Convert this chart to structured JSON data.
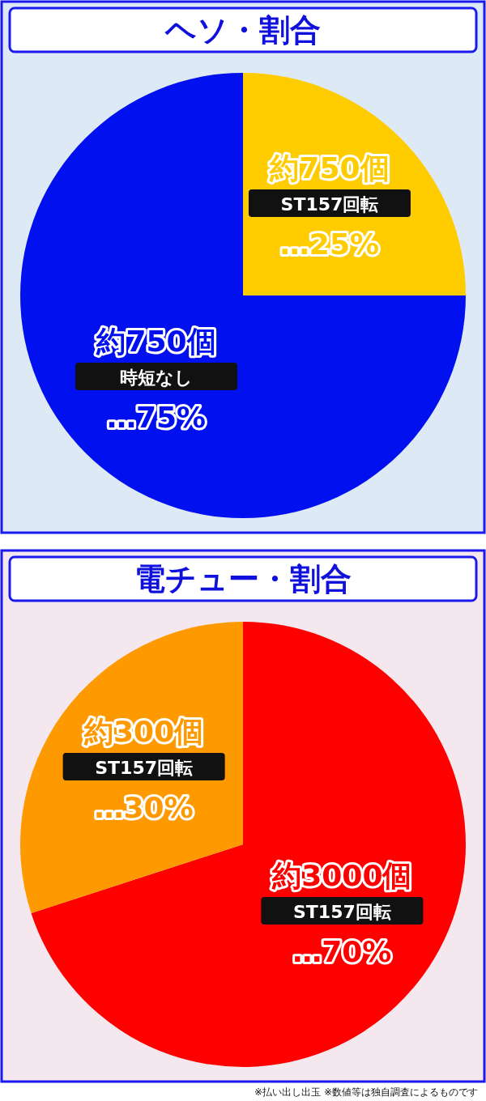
{
  "chart_data": [
    {
      "type": "pie",
      "title": "ヘソ・割合",
      "categories": [
        "ST157回転",
        "時短なし"
      ],
      "values": [
        25,
        75
      ],
      "colors": [
        "#ffcc00",
        "#0010ee"
      ],
      "value_labels": [
        "…25%",
        "…75%"
      ],
      "annotations": [
        "約750個",
        "約750個"
      ]
    },
    {
      "type": "pie",
      "title": "電チュー・割合",
      "categories": [
        "ST157回転",
        "ST157回転"
      ],
      "values": [
        70,
        30
      ],
      "colors": [
        "#ff0000",
        "#ff9900"
      ],
      "value_labels": [
        "…70%",
        "…30%"
      ],
      "annotations": [
        "約3000個",
        "約300個",
        "※払い出し出玉 ※数値等は独自調査によるものです"
      ]
    }
  ]
}
